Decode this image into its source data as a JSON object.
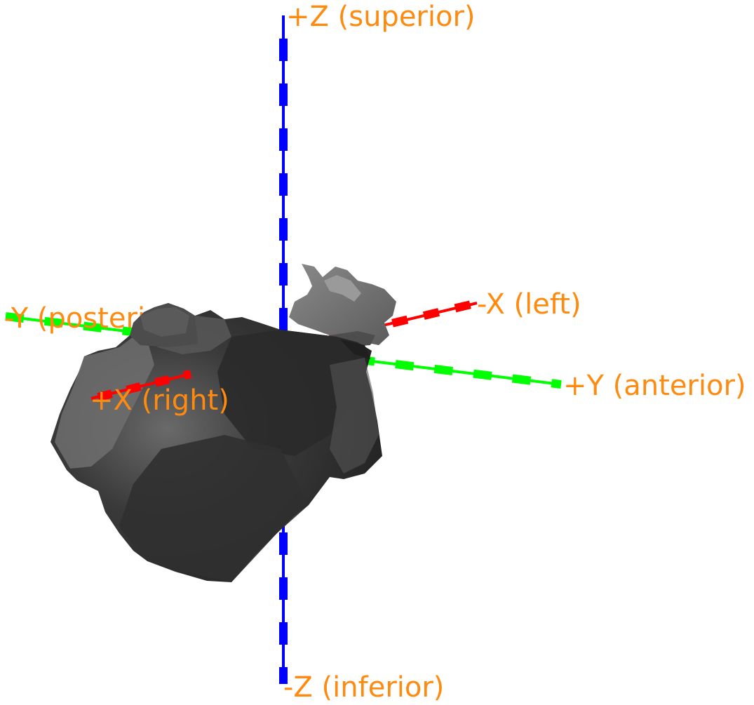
{
  "axes": {
    "z_pos": {
      "label": "+Z (superior)",
      "color": "#0000ff"
    },
    "z_neg": {
      "label": "-Z (inferior)",
      "color": "#0000ff"
    },
    "x_pos": {
      "label": "+X (right)",
      "color": "#ff0000"
    },
    "x_neg": {
      "label": "-X (left)",
      "color": "#ff0000"
    },
    "y_pos": {
      "label": "+Y (anterior)",
      "color": "#00ff00"
    },
    "y_neg": {
      "label": "-Y (posterior)",
      "color": "#00ff00"
    }
  },
  "label_color": "#ff8a10",
  "mesh_colors": {
    "dark": "#262626",
    "mid": "#4a4a4a",
    "light": "#7a7a7a"
  }
}
